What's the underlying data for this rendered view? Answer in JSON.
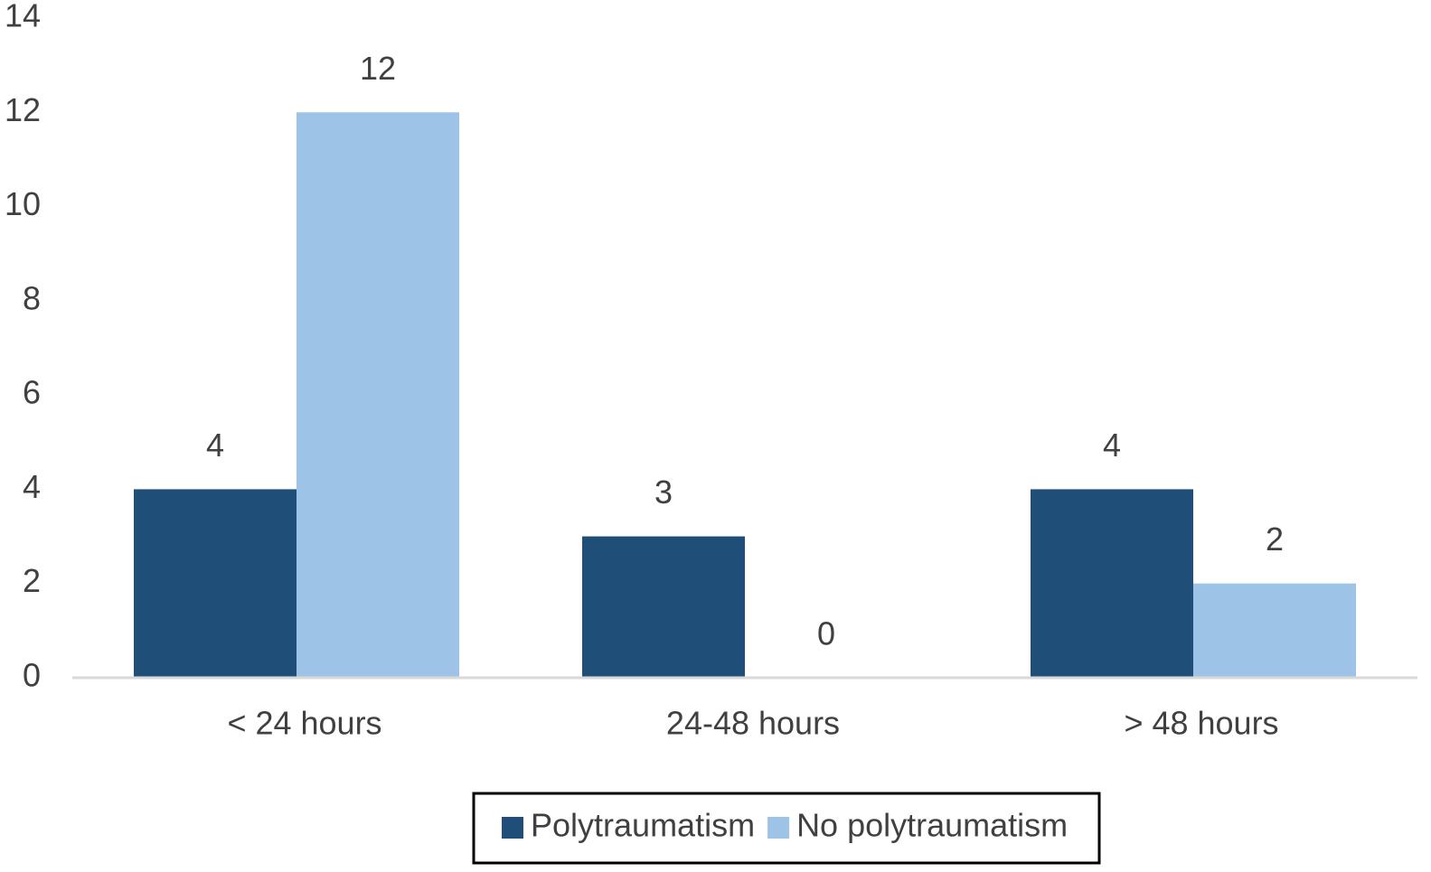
{
  "chart_data": {
    "type": "bar",
    "categories": [
      "< 24 hours",
      "24-48 hours",
      "> 48 hours"
    ],
    "series": [
      {
        "name": "Polytraumatism",
        "color": "#1f4e79",
        "values": [
          4,
          3,
          4
        ]
      },
      {
        "name": "No polytraumatism",
        "color": "#9dc3e6",
        "values": [
          12,
          0,
          2
        ]
      }
    ],
    "ylim": [
      0,
      14
    ],
    "yticks": [
      0,
      2,
      4,
      6,
      8,
      10,
      12,
      14
    ],
    "grid": false,
    "legend": "bottom"
  }
}
